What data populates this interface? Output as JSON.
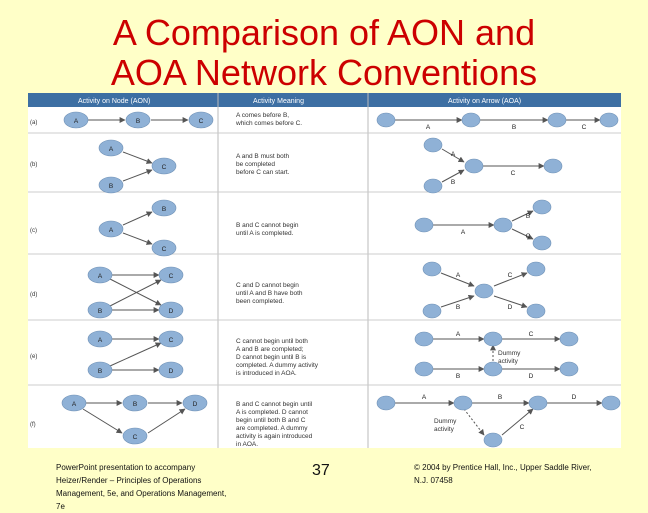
{
  "slide": {
    "title_line1": "A Comparison of AON and",
    "title_line2": "AOA Network Conventions",
    "page_number": "37",
    "footer_left_lines": [
      "PowerPoint presentation to accompany",
      "Heizer/Render – Principles of Operations",
      "Management, 5e, and Operations Management,",
      "7e"
    ],
    "footer_right_lines": [
      "© 2004 by Prentice Hall, Inc., Upper Saddle River,",
      "N.J. 07458"
    ]
  },
  "table": {
    "headers": [
      "Activity on Node (AON)",
      "Activity Meaning",
      "Activity on Arrow (AOA)"
    ],
    "header_color": "#3d6fa3",
    "node_color": "#8fb1d6",
    "rows": [
      {
        "label": "(a)",
        "meaning": [
          "A comes before B,",
          "which comes before C."
        ]
      },
      {
        "label": "(b)",
        "meaning": [
          "A and B must both",
          "be completed",
          "before C can start."
        ]
      },
      {
        "label": "(c)",
        "meaning": [
          "B and C cannot begin",
          "until A is completed."
        ]
      },
      {
        "label": "(d)",
        "meaning": [
          "C and D cannot begin",
          "until A and B have both",
          "been completed."
        ]
      },
      {
        "label": "(e)",
        "meaning": [
          "C cannot begin until both",
          "A and B are completed;",
          "D cannot begin until B is",
          "completed. A dummy activity",
          "is introduced in AOA."
        ]
      },
      {
        "label": "(f)",
        "meaning": [
          "B and C cannot begin until",
          "A is completed. D cannot",
          "begin until both B and C",
          "are completed. A dummy",
          "activity is again introduced",
          "in AOA."
        ]
      }
    ],
    "node_letters": [
      "A",
      "B",
      "C",
      "D"
    ],
    "dummy_label_e": [
      "Dummy",
      "activity"
    ],
    "dummy_label_f": [
      "Dummy",
      "activity"
    ]
  }
}
